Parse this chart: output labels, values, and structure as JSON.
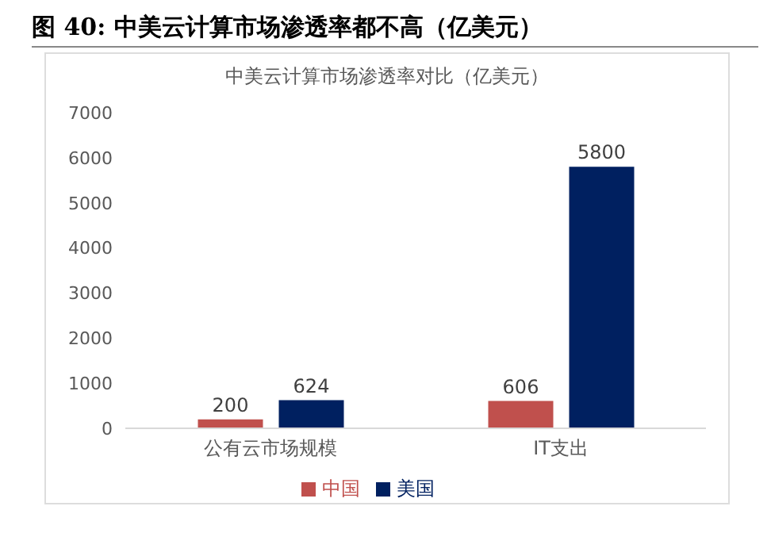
{
  "chart_data": {
    "type": "bar",
    "title": "图 40: 中美云计算市场渗透率都不高（亿美元）",
    "subtitle": "中美云计算市场渗透率对比（亿美元）",
    "categories": [
      "公有云市场规模",
      "IT支出"
    ],
    "series": [
      {
        "name": "中国",
        "color": "#c0504d",
        "values": [
          200,
          606
        ]
      },
      {
        "name": "美国",
        "color": "#002060",
        "values": [
          624,
          5800
        ]
      }
    ],
    "ylim": [
      0,
      7000
    ],
    "yticks": [
      0,
      1000,
      2000,
      3000,
      4000,
      5000,
      6000,
      7000
    ],
    "data_labels": true,
    "legend": "bottom"
  }
}
